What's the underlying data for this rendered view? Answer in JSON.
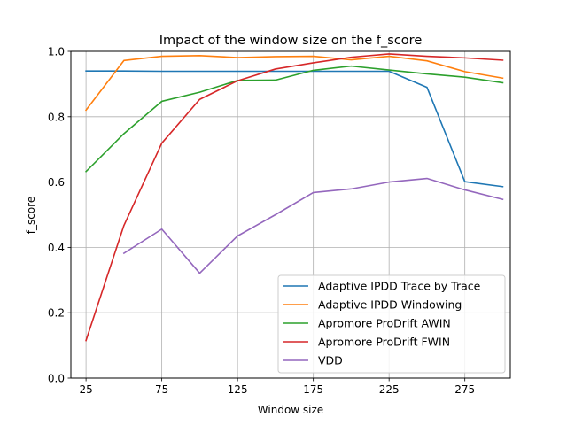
{
  "chart_data": {
    "type": "line",
    "title": "Impact of the window size on the f_score",
    "xlabel": "Window size",
    "ylabel": "f_score",
    "xlim": [
      15,
      305
    ],
    "ylim": [
      0,
      1.0
    ],
    "xticks": [
      25,
      75,
      125,
      175,
      225,
      275
    ],
    "yticks": [
      0.0,
      0.2,
      0.4,
      0.6,
      0.8,
      1.0
    ],
    "grid": true,
    "legend_position": "lower-right",
    "series": [
      {
        "name": "Adaptive IPDD Trace by Trace",
        "color": "#1f77b4",
        "x": [
          25,
          50,
          75,
          100,
          125,
          150,
          175,
          200,
          225,
          250,
          275,
          300
        ],
        "y": [
          0.94,
          0.94,
          0.939,
          0.939,
          0.939,
          0.939,
          0.939,
          0.939,
          0.939,
          0.89,
          0.601,
          0.586
        ]
      },
      {
        "name": "Adaptive IPDD Windowing",
        "color": "#ff7f0e",
        "x": [
          25,
          50,
          75,
          100,
          125,
          150,
          175,
          200,
          225,
          250,
          275,
          300
        ],
        "y": [
          0.82,
          0.972,
          0.985,
          0.987,
          0.981,
          0.984,
          0.985,
          0.974,
          0.985,
          0.971,
          0.938,
          0.918
        ]
      },
      {
        "name": "Apromore ProDrift AWIN",
        "color": "#2ca02c",
        "x": [
          25,
          50,
          75,
          100,
          125,
          150,
          175,
          200,
          225,
          250,
          275,
          300
        ],
        "y": [
          0.632,
          0.748,
          0.847,
          0.875,
          0.911,
          0.912,
          0.942,
          0.955,
          0.943,
          0.931,
          0.921,
          0.904
        ]
      },
      {
        "name": "Apromore ProDrift FWIN",
        "color": "#d62728",
        "x": [
          25,
          50,
          75,
          100,
          125,
          150,
          175,
          200,
          225,
          250,
          275,
          300
        ],
        "y": [
          0.115,
          0.467,
          0.719,
          0.853,
          0.91,
          0.946,
          0.965,
          0.982,
          0.992,
          0.985,
          0.98,
          0.973
        ]
      },
      {
        "name": "VDD",
        "color": "#9467bd",
        "x": [
          50,
          75,
          100,
          125,
          150,
          175,
          200,
          225,
          250,
          275,
          300
        ],
        "y": [
          0.382,
          0.456,
          0.321,
          0.435,
          0.5,
          0.568,
          0.579,
          0.6,
          0.611,
          0.576,
          0.547
        ]
      }
    ]
  }
}
